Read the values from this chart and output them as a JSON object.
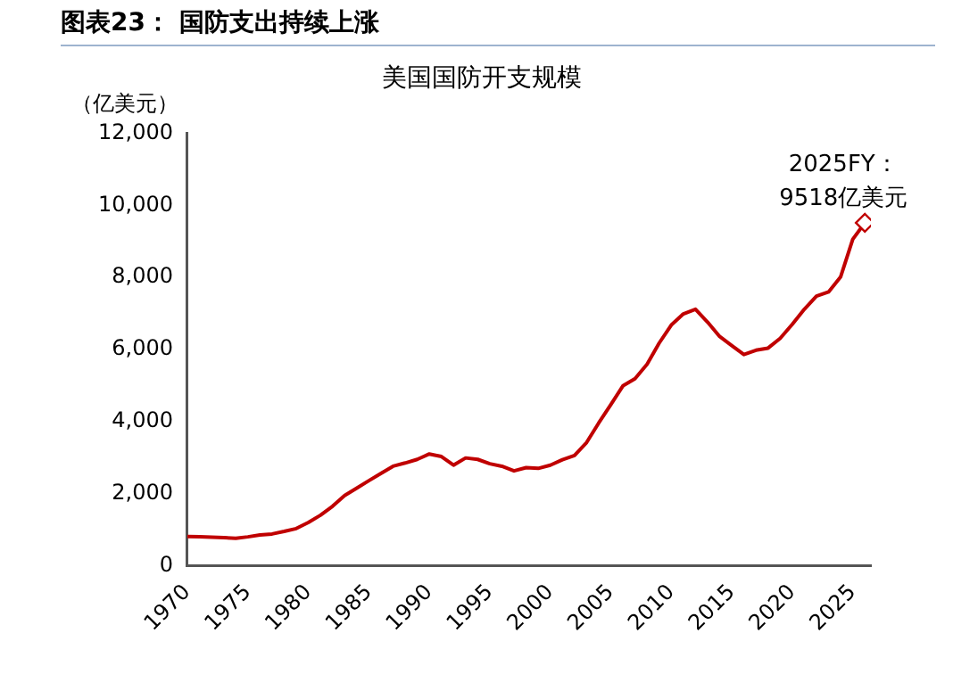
{
  "chart_data": {
    "type": "line",
    "title": "图表23： 国防支出持续上涨",
    "subtitle": "美国国防开支规模",
    "ylabel": "（亿美元）",
    "x": [
      1970,
      1971,
      1972,
      1973,
      1974,
      1975,
      1976,
      1977,
      1978,
      1979,
      1980,
      1981,
      1982,
      1983,
      1984,
      1985,
      1986,
      1987,
      1988,
      1989,
      1990,
      1991,
      1992,
      1993,
      1994,
      1995,
      1996,
      1997,
      1998,
      1999,
      2000,
      2001,
      2002,
      2003,
      2004,
      2005,
      2006,
      2007,
      2008,
      2009,
      2010,
      2011,
      2012,
      2013,
      2014,
      2015,
      2016,
      2017,
      2018,
      2019,
      2020,
      2021,
      2022,
      2023,
      2024,
      2025,
      2026
    ],
    "series": [
      {
        "type": "line",
        "color": "#c00000",
        "marker": "none",
        "values": [
          810,
          800,
          790,
          780,
          760,
          800,
          850,
          880,
          950,
          1030,
          1200,
          1400,
          1650,
          1950,
          2150,
          2360,
          2560,
          2760,
          2850,
          2950,
          3100,
          3030,
          2790,
          2990,
          2950,
          2830,
          2760,
          2630,
          2720,
          2700,
          2790,
          2940,
          3060,
          3420,
          3960,
          4470,
          4990,
          5190,
          5590,
          6180,
          6680,
          6990,
          7120,
          6760,
          6360,
          6110,
          5860,
          5980,
          6040,
          6310,
          6700,
          7120,
          7480,
          7600,
          8020,
          9060,
          9518
        ]
      },
      {
        "type": "scatter",
        "color": "#c00000",
        "marker": "diamond",
        "x": [
          2026
        ],
        "values": [
          9518
        ]
      }
    ],
    "annotations": [
      {
        "text": "2025FY：\n9518亿美元",
        "x": 2026,
        "y": 9518
      }
    ],
    "xlim": [
      1970,
      2026.5
    ],
    "xticks": [
      1970,
      1975,
      1980,
      1985,
      1990,
      1995,
      2000,
      2005,
      2010,
      2015,
      2020,
      2025
    ],
    "ylim": [
      0,
      12000
    ],
    "yticks": [
      0,
      {
        "value": 2000,
        "label": "2,000"
      },
      {
        "value": 4000,
        "label": "4,000"
      },
      {
        "value": 6000,
        "label": "6,000"
      },
      {
        "value": 8000,
        "label": "8,000"
      },
      {
        "value": 10000,
        "label": "10,000"
      },
      {
        "value": 12000,
        "label": "12,000"
      }
    ],
    "grid": false,
    "legend": false
  }
}
